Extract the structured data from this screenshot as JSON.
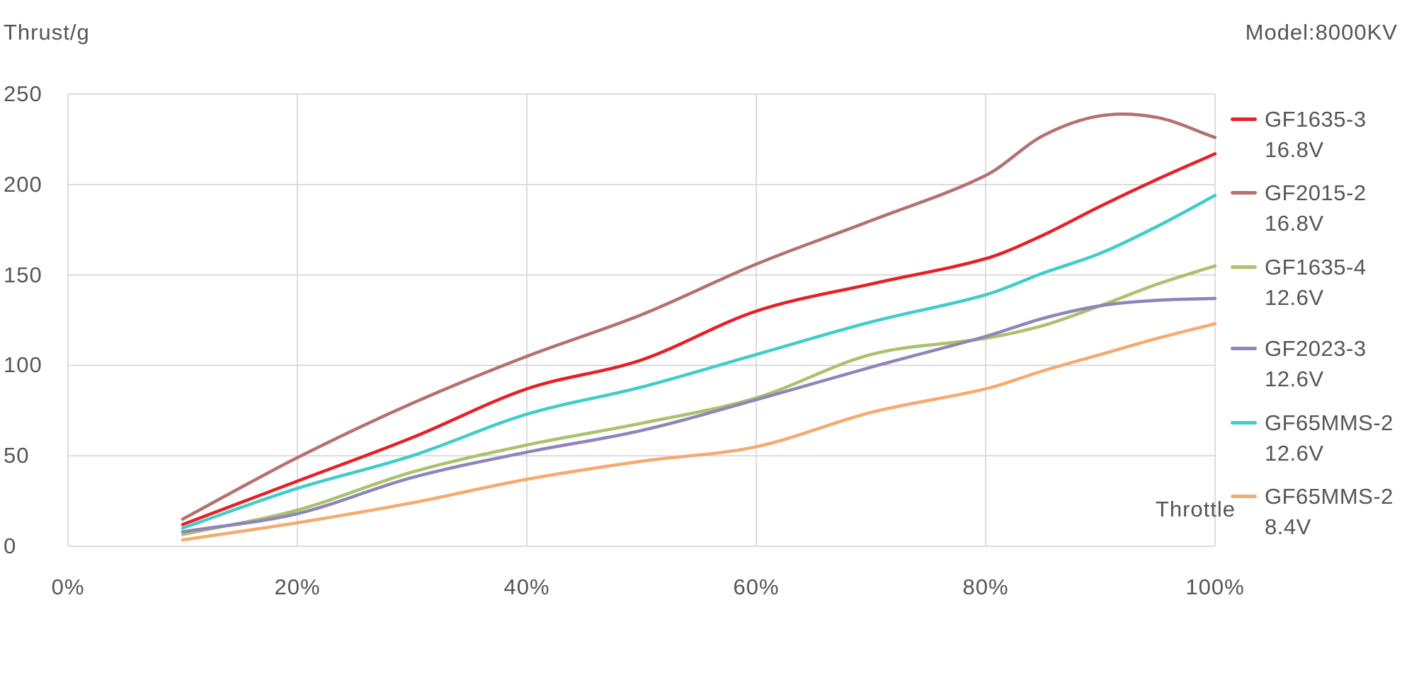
{
  "chart_data": {
    "type": "line",
    "title": "Model:8000KV",
    "ylabel": "Thrust/g",
    "xlabel": "Throttle",
    "xlim": [
      0,
      100
    ],
    "ylim": [
      0,
      250
    ],
    "grid": true,
    "legend_position": "right",
    "x_tick_labels": [
      "0%",
      "20%",
      "40%",
      "60%",
      "80%",
      "100%"
    ],
    "x_ticks_percent": [
      0,
      20,
      40,
      60,
      80,
      100
    ],
    "y_tick_labels": [
      "250",
      "200",
      "150",
      "100",
      "50",
      "0"
    ],
    "y_ticks": [
      0,
      50,
      100,
      150,
      200,
      250
    ],
    "x": [
      10,
      20,
      30,
      40,
      50,
      60,
      70,
      80,
      85,
      90,
      95,
      100
    ],
    "series": [
      {
        "name": "GF1635-3",
        "voltage": "16.8V",
        "color": "#e52026",
        "values": [
          12,
          36,
          60,
          87,
          103,
          130,
          145,
          159,
          172,
          188,
          203,
          217
        ]
      },
      {
        "name": "GF2015-2",
        "voltage": "16.8V",
        "color": "#b4716f",
        "values": [
          15,
          49,
          79,
          105,
          128,
          156,
          180,
          205,
          227,
          238,
          237,
          226
        ]
      },
      {
        "name": "GF1635-4",
        "voltage": "12.6V",
        "color": "#a7c36e",
        "values": [
          6.5,
          20,
          41,
          56,
          68,
          82,
          106,
          115,
          122,
          133,
          145,
          155
        ]
      },
      {
        "name": "GF2023-3",
        "voltage": "12.6V",
        "color": "#8e85b9",
        "values": [
          8,
          18,
          38,
          52,
          64,
          81,
          99,
          116,
          126,
          133,
          136,
          137
        ]
      },
      {
        "name": "GF65MMS-2",
        "voltage": "12.6V",
        "color": "#3fcdc9",
        "values": [
          10,
          32,
          50,
          73,
          88,
          106,
          124,
          139,
          151,
          162,
          177,
          194
        ]
      },
      {
        "name": "GF65MMS-2",
        "voltage": "8.4V",
        "color": "#f5aa6f",
        "values": [
          3.5,
          13,
          24,
          37,
          47,
          55,
          74,
          87,
          97,
          106,
          115,
          123
        ]
      }
    ],
    "grid_color": "#d2d2d2",
    "text_color": "#555558"
  }
}
